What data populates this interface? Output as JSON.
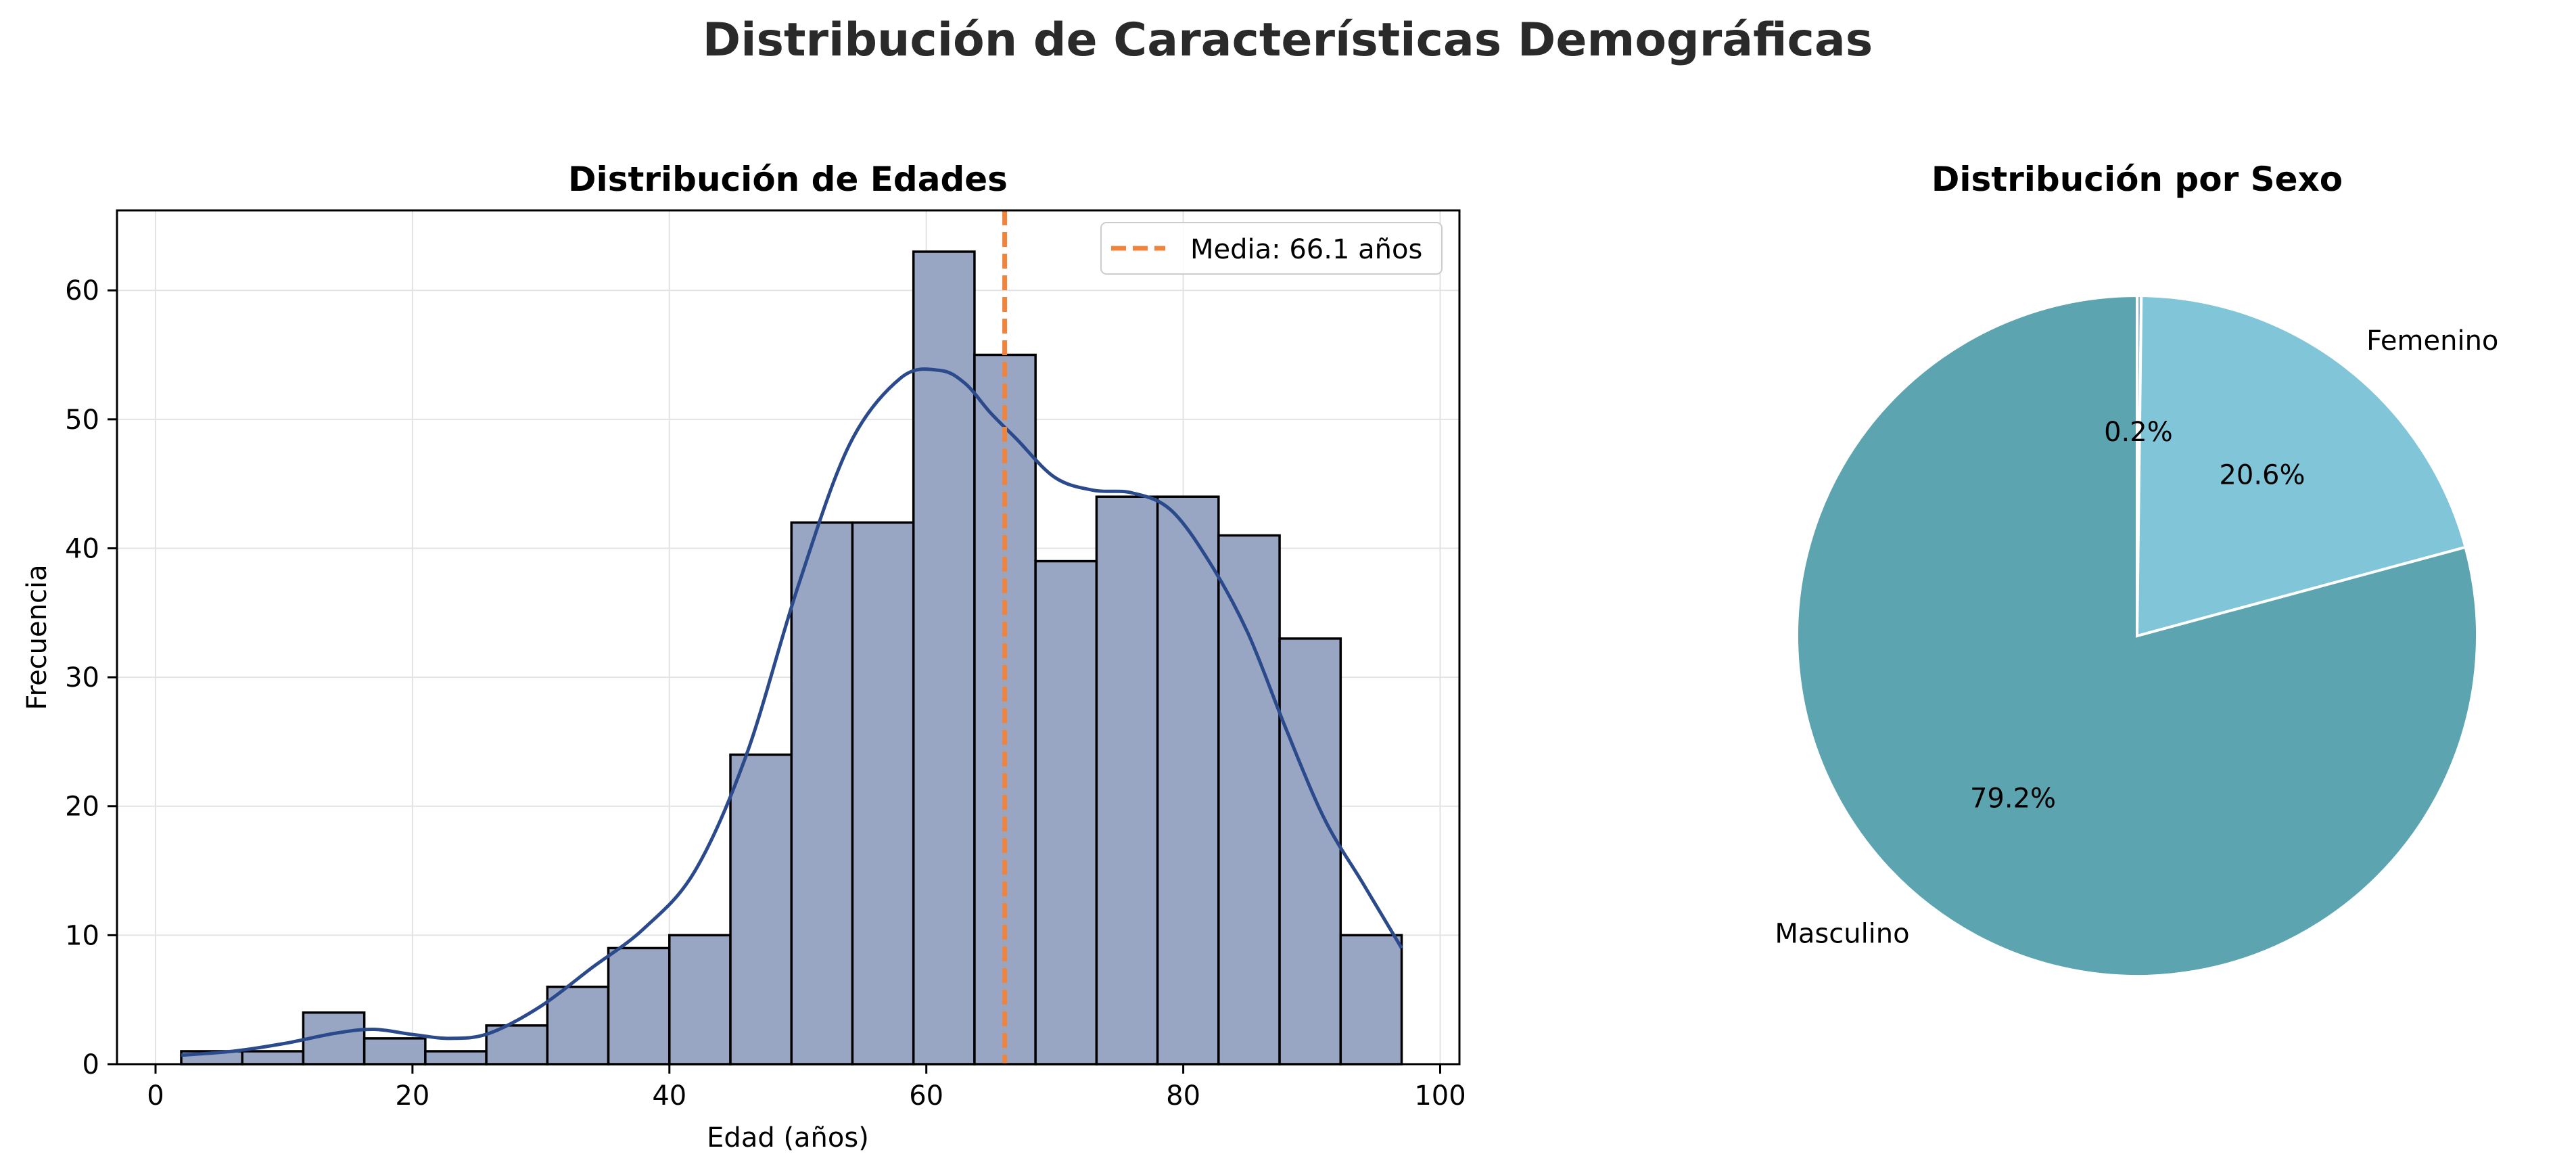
{
  "figure": {
    "title": "Distribución de Características Demográficas"
  },
  "chart_data": [
    {
      "type": "bar",
      "subtype": "histogram-with-kde",
      "title": "Distribución de Edades",
      "xlabel": "Edad (años)",
      "ylabel": "Frecuencia",
      "xlim": [
        -3,
        101.5
      ],
      "ylim": [
        0,
        66.2
      ],
      "xticks": [
        0,
        20,
        40,
        60,
        80,
        100
      ],
      "yticks": [
        0,
        10,
        20,
        30,
        40,
        50,
        60
      ],
      "grid": true,
      "bins": [
        {
          "start": 2.0,
          "end": 6.75,
          "count": 1
        },
        {
          "start": 6.75,
          "end": 11.5,
          "count": 1
        },
        {
          "start": 11.5,
          "end": 16.25,
          "count": 4
        },
        {
          "start": 16.25,
          "end": 21.0,
          "count": 2
        },
        {
          "start": 21.0,
          "end": 25.75,
          "count": 1
        },
        {
          "start": 25.75,
          "end": 30.5,
          "count": 3
        },
        {
          "start": 30.5,
          "end": 35.25,
          "count": 6
        },
        {
          "start": 35.25,
          "end": 40.0,
          "count": 9
        },
        {
          "start": 40.0,
          "end": 44.75,
          "count": 10
        },
        {
          "start": 44.75,
          "end": 49.5,
          "count": 24
        },
        {
          "start": 49.5,
          "end": 54.25,
          "count": 42
        },
        {
          "start": 54.25,
          "end": 59.0,
          "count": 42
        },
        {
          "start": 59.0,
          "end": 63.75,
          "count": 63
        },
        {
          "start": 63.75,
          "end": 68.5,
          "count": 55
        },
        {
          "start": 68.5,
          "end": 73.25,
          "count": 39
        },
        {
          "start": 73.25,
          "end": 78.0,
          "count": 44
        },
        {
          "start": 78.0,
          "end": 82.75,
          "count": 44
        },
        {
          "start": 82.75,
          "end": 87.5,
          "count": 41
        },
        {
          "start": 87.5,
          "end": 92.25,
          "count": 33
        },
        {
          "start": 92.25,
          "end": 97.0,
          "count": 10
        }
      ],
      "kde": {
        "x": [
          2,
          6,
          10,
          14,
          17,
          20,
          23,
          26,
          30,
          34,
          38,
          42,
          46,
          50,
          54,
          58,
          61,
          63,
          65,
          67,
          70,
          73,
          76,
          79,
          82,
          85,
          88,
          91,
          94,
          97
        ],
        "y": [
          0.7,
          1.0,
          1.6,
          2.4,
          2.7,
          2.3,
          2.0,
          2.4,
          4.5,
          7.5,
          10.5,
          15.0,
          24.0,
          37.0,
          48.0,
          53.2,
          53.8,
          52.8,
          50.5,
          48.5,
          45.5,
          44.5,
          44.3,
          43.0,
          39.0,
          33.5,
          26.0,
          19.0,
          14.0,
          9.0
        ]
      },
      "mean_line": {
        "x": 66.1,
        "label": "Media: 66.1 años"
      },
      "legend_position": "top-right",
      "colors": {
        "bar_fill": "#98a6c4",
        "bar_edge": "#000000",
        "kde": "#2b4a8b",
        "mean": "#f0843c"
      }
    },
    {
      "type": "pie",
      "title": "Distribución por Sexo",
      "slices": [
        {
          "label": "",
          "value": 0.2,
          "pct_label": "0.2%",
          "color": "#8ab4c8"
        },
        {
          "label": "Femenino",
          "value": 20.6,
          "pct_label": "20.6%",
          "color": "#80c5d8"
        },
        {
          "label": "Masculino",
          "value": 79.2,
          "pct_label": "79.2%",
          "color": "#5ba4b0"
        }
      ],
      "start_angle_deg": 90,
      "direction": "clockwise",
      "edge_color": "#ffffff"
    }
  ]
}
